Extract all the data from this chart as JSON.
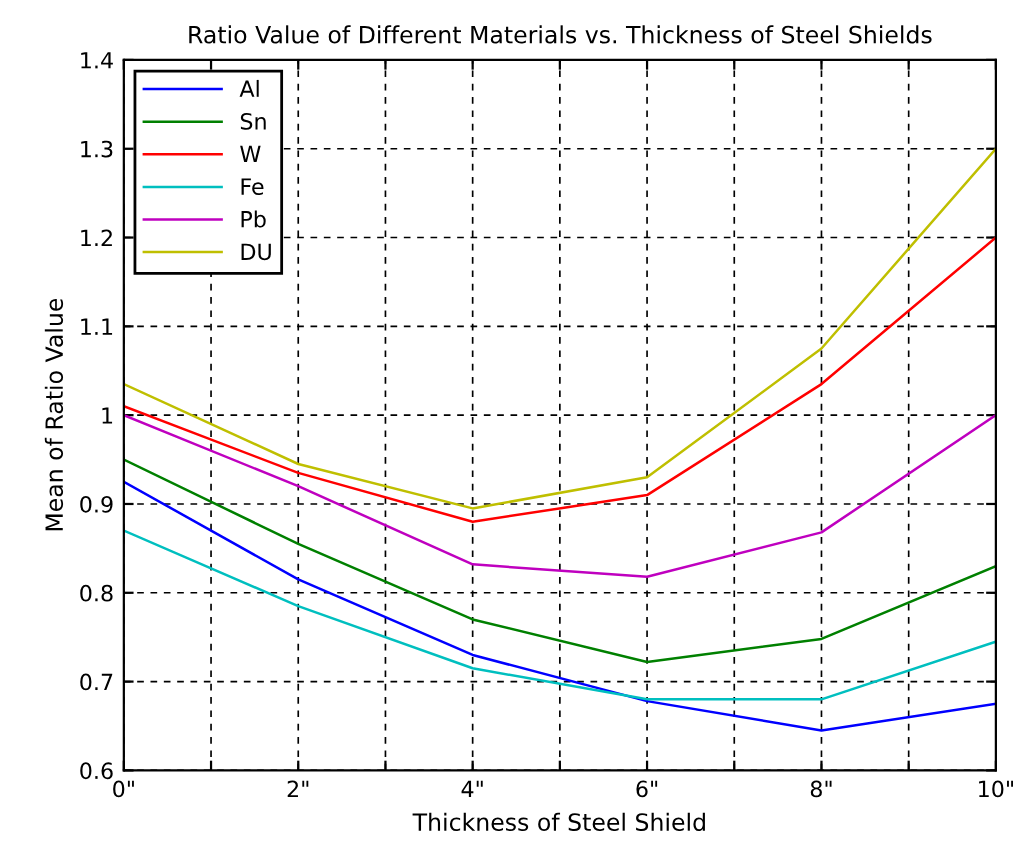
{
  "chart_data": {
    "type": "line",
    "title": "Ratio Value of Different Materials vs. Thickness of Steel Shields",
    "xlabel": "Thickness of Steel Shield",
    "ylabel": "Mean of Ratio Value",
    "x": [
      0,
      2,
      4,
      6,
      8,
      10
    ],
    "series": [
      {
        "name": "Al",
        "color": "#0000ff",
        "values": [
          0.925,
          0.815,
          0.73,
          0.678,
          0.645,
          0.675
        ]
      },
      {
        "name": "Sn",
        "color": "#008000",
        "values": [
          0.95,
          0.855,
          0.77,
          0.722,
          0.748,
          0.83
        ]
      },
      {
        "name": "W",
        "color": "#ff0000",
        "values": [
          1.01,
          0.935,
          0.88,
          0.91,
          1.035,
          1.2
        ]
      },
      {
        "name": "Fe",
        "color": "#00bfbf",
        "values": [
          0.87,
          0.785,
          0.715,
          0.68,
          0.68,
          0.745
        ]
      },
      {
        "name": "Pb",
        "color": "#bf00bf",
        "values": [
          1.0,
          0.92,
          0.832,
          0.818,
          0.868,
          1.0
        ]
      },
      {
        "name": "DU",
        "color": "#bfbf00",
        "values": [
          1.035,
          0.945,
          0.895,
          0.93,
          1.075,
          1.3
        ]
      }
    ],
    "xlim": [
      0,
      10
    ],
    "ylim": [
      0.6,
      1.4
    ],
    "xticks": [
      {
        "value": 0,
        "label": "0\""
      },
      {
        "value": 1,
        "label": null
      },
      {
        "value": 2,
        "label": "2\""
      },
      {
        "value": 3,
        "label": null
      },
      {
        "value": 4,
        "label": "4\""
      },
      {
        "value": 5,
        "label": null
      },
      {
        "value": 6,
        "label": "6\""
      },
      {
        "value": 7,
        "label": null
      },
      {
        "value": 8,
        "label": "8\""
      },
      {
        "value": 9,
        "label": null
      },
      {
        "value": 10,
        "label": "10\""
      }
    ],
    "yticks": [
      0.6,
      0.7,
      0.8,
      0.9,
      1,
      1.1,
      1.2,
      1.3,
      1.4
    ],
    "grid": true,
    "legend": "top left",
    "marker": "none",
    "line_style": "solid"
  }
}
